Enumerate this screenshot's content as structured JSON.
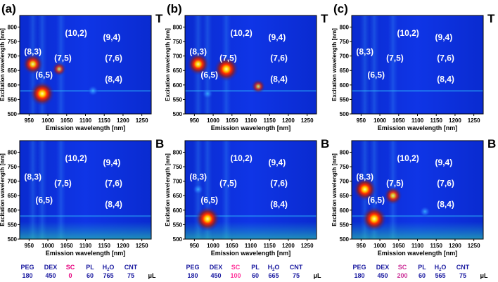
{
  "chart_data": {
    "type": "heatmap",
    "panels": [
      {
        "id": "a",
        "label": "(a)",
        "sc": "0",
        "sc_color": "#e6007e",
        "top": {
          "tag": "T",
          "spots": [
            [
              985,
              570,
              1.0
            ],
            [
              960,
              672,
              0.75
            ],
            [
              1030,
              655,
              0.35
            ],
            [
              1120,
              580,
              0.12
            ]
          ]
        },
        "bottom": {
          "tag": "B",
          "spots": []
        }
      },
      {
        "id": "b",
        "label": "(b)",
        "sc": "100",
        "sc_color": "#ff3399",
        "top": {
          "tag": "T",
          "spots": [
            [
              1035,
              655,
              1.0
            ],
            [
              960,
              672,
              0.85
            ],
            [
              1120,
              595,
              0.35
            ],
            [
              985,
              570,
              0.25
            ]
          ]
        },
        "bottom": {
          "tag": "B",
          "spots": [
            [
              985,
              570,
              1.0
            ],
            [
              960,
              672,
              0.15
            ]
          ]
        }
      },
      {
        "id": "c",
        "label": "(c)",
        "sc": "200",
        "sc_color": "#cc3399",
        "top": {
          "tag": "T",
          "spots": []
        },
        "bottom": {
          "tag": "B",
          "spots": [
            [
              985,
              570,
              1.0
            ],
            [
              960,
              672,
              0.9
            ],
            [
              1035,
              650,
              0.6
            ],
            [
              1120,
              595,
              0.15
            ]
          ]
        }
      }
    ],
    "chirality_labels": [
      {
        "text": "(10,2)",
        "x": 1075,
        "y": 770
      },
      {
        "text": "(9,4)",
        "x": 1170,
        "y": 755
      },
      {
        "text": "(8,3)",
        "x": 960,
        "y": 705
      },
      {
        "text": "(7,5)",
        "x": 1040,
        "y": 683
      },
      {
        "text": "(7,6)",
        "x": 1175,
        "y": 683
      },
      {
        "text": "(6,5)",
        "x": 990,
        "y": 625
      },
      {
        "text": "(8,4)",
        "x": 1175,
        "y": 610
      }
    ],
    "xlabel": "Emission wavelength [nm]",
    "ylabel": "Excitation wavelength [nm]",
    "xlim": [
      925,
      1275
    ],
    "ylim": [
      500,
      840
    ],
    "xticks": [
      950,
      1000,
      1050,
      1100,
      1150,
      1200,
      1250
    ],
    "yticks": [
      500,
      550,
      600,
      650,
      700,
      750,
      800
    ],
    "composition": {
      "headers": [
        "PEG",
        "DEX",
        "SC",
        "PL",
        "H",
        "2",
        "O",
        "CNT"
      ],
      "values": [
        "180",
        "450",
        "60",
        "765",
        "75"
      ],
      "values_b": [
        "180",
        "450",
        "60",
        "665",
        "75"
      ],
      "values_c": [
        "180",
        "450",
        "60",
        "565",
        "75"
      ],
      "unit": "μL"
    }
  }
}
